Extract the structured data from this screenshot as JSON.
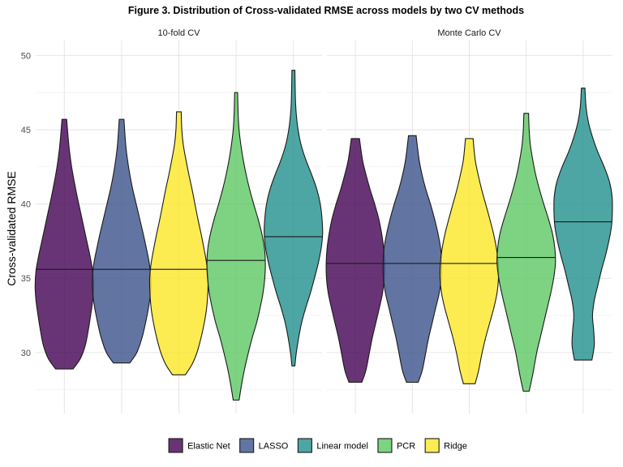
{
  "chart_data": {
    "type": "violin",
    "title": "Figure 3. Distribution of Cross-validated RMSE across models by two CV methods",
    "ylabel": "Cross-validated RMSE",
    "xlabel": "",
    "ylim": [
      25.9,
      51.0
    ],
    "yticks": [
      30,
      35,
      40,
      45,
      50
    ],
    "grid": true,
    "legend_position": "bottom",
    "legend": [
      {
        "name": "Elastic Net",
        "color": "#440154"
      },
      {
        "name": "LASSO",
        "color": "#3B528B"
      },
      {
        "name": "Linear model",
        "color": "#21908C"
      },
      {
        "name": "PCR",
        "color": "#5DC863"
      },
      {
        "name": "Ridge",
        "color": "#FDE725"
      }
    ],
    "facets": [
      {
        "label": "10-fold CV",
        "violins": [
          {
            "model": "Elastic Net",
            "color": "#440154",
            "min": 28.9,
            "max": 45.7,
            "median": 35.6,
            "density": [
              [
                28.9,
                0.3
              ],
              [
                29.6,
                0.55
              ],
              [
                30.5,
                0.72
              ],
              [
                31.5,
                0.82
              ],
              [
                32.5,
                0.9
              ],
              [
                33.5,
                0.97
              ],
              [
                34.5,
                1.0
              ],
              [
                35.5,
                0.97
              ],
              [
                36.5,
                0.88
              ],
              [
                37.5,
                0.77
              ],
              [
                38.5,
                0.66
              ],
              [
                39.5,
                0.55
              ],
              [
                40.5,
                0.44
              ],
              [
                41.5,
                0.34
              ],
              [
                42.5,
                0.25
              ],
              [
                43.5,
                0.18
              ],
              [
                44.5,
                0.13
              ],
              [
                45.7,
                0.08
              ]
            ]
          },
          {
            "model": "LASSO",
            "color": "#3B528B",
            "min": 29.3,
            "max": 45.7,
            "median": 35.6,
            "density": [
              [
                29.3,
                0.28
              ],
              [
                30.0,
                0.52
              ],
              [
                31.0,
                0.7
              ],
              [
                32.0,
                0.82
              ],
              [
                33.0,
                0.92
              ],
              [
                34.0,
                0.99
              ],
              [
                35.0,
                1.0
              ],
              [
                36.0,
                0.95
              ],
              [
                37.0,
                0.85
              ],
              [
                38.0,
                0.74
              ],
              [
                39.0,
                0.62
              ],
              [
                40.0,
                0.5
              ],
              [
                41.0,
                0.38
              ],
              [
                42.0,
                0.28
              ],
              [
                43.0,
                0.2
              ],
              [
                44.0,
                0.14
              ],
              [
                45.7,
                0.08
              ]
            ]
          },
          {
            "model": "Ridge",
            "color": "#FDE725",
            "min": 28.5,
            "max": 46.2,
            "median": 35.6,
            "density": [
              [
                28.5,
                0.22
              ],
              [
                29.2,
                0.45
              ],
              [
                30.0,
                0.62
              ],
              [
                31.0,
                0.76
              ],
              [
                32.0,
                0.87
              ],
              [
                33.0,
                0.95
              ],
              [
                34.0,
                0.99
              ],
              [
                35.0,
                1.0
              ],
              [
                36.0,
                0.95
              ],
              [
                37.0,
                0.86
              ],
              [
                38.0,
                0.76
              ],
              [
                39.0,
                0.65
              ],
              [
                40.0,
                0.55
              ],
              [
                41.0,
                0.45
              ],
              [
                42.0,
                0.34
              ],
              [
                43.0,
                0.24
              ],
              [
                44.0,
                0.15
              ],
              [
                45.0,
                0.1
              ],
              [
                46.2,
                0.08
              ]
            ]
          },
          {
            "model": "PCR",
            "color": "#5DC863",
            "min": 26.8,
            "max": 47.5,
            "median": 36.2,
            "density": [
              [
                26.8,
                0.1
              ],
              [
                28.0,
                0.2
              ],
              [
                29.0,
                0.3
              ],
              [
                30.0,
                0.42
              ],
              [
                31.0,
                0.55
              ],
              [
                32.0,
                0.7
              ],
              [
                33.0,
                0.82
              ],
              [
                34.0,
                0.92
              ],
              [
                35.0,
                0.98
              ],
              [
                36.0,
                1.0
              ],
              [
                37.0,
                0.97
              ],
              [
                38.0,
                0.88
              ],
              [
                39.0,
                0.75
              ],
              [
                40.0,
                0.6
              ],
              [
                41.0,
                0.46
              ],
              [
                42.0,
                0.34
              ],
              [
                43.0,
                0.24
              ],
              [
                44.0,
                0.16
              ],
              [
                45.0,
                0.1
              ],
              [
                46.0,
                0.07
              ],
              [
                47.5,
                0.05
              ]
            ]
          },
          {
            "model": "Linear model",
            "color": "#21908C",
            "min": 29.1,
            "max": 49.0,
            "median": 37.8,
            "density": [
              [
                29.1,
                0.05
              ],
              [
                30.0,
                0.1
              ],
              [
                31.0,
                0.18
              ],
              [
                32.0,
                0.28
              ],
              [
                33.0,
                0.42
              ],
              [
                34.0,
                0.58
              ],
              [
                35.0,
                0.72
              ],
              [
                36.0,
                0.85
              ],
              [
                37.0,
                0.95
              ],
              [
                38.0,
                1.0
              ],
              [
                39.0,
                0.98
              ],
              [
                40.0,
                0.92
              ],
              [
                41.0,
                0.8
              ],
              [
                42.0,
                0.62
              ],
              [
                43.0,
                0.42
              ],
              [
                44.0,
                0.26
              ],
              [
                45.0,
                0.16
              ],
              [
                46.0,
                0.1
              ],
              [
                47.0,
                0.07
              ],
              [
                49.0,
                0.05
              ]
            ]
          }
        ]
      },
      {
        "label": "Monte Carlo CV",
        "violins": [
          {
            "model": "Elastic Net",
            "color": "#440154",
            "min": 28.0,
            "max": 44.4,
            "median": 36.0,
            "density": [
              [
                28.0,
                0.22
              ],
              [
                28.8,
                0.36
              ],
              [
                30.0,
                0.48
              ],
              [
                31.0,
                0.58
              ],
              [
                32.0,
                0.7
              ],
              [
                33.0,
                0.82
              ],
              [
                34.0,
                0.93
              ],
              [
                35.0,
                0.99
              ],
              [
                36.0,
                1.0
              ],
              [
                37.0,
                0.97
              ],
              [
                38.0,
                0.9
              ],
              [
                39.0,
                0.8
              ],
              [
                40.0,
                0.66
              ],
              [
                41.0,
                0.5
              ],
              [
                42.0,
                0.36
              ],
              [
                43.0,
                0.24
              ],
              [
                44.4,
                0.14
              ]
            ]
          },
          {
            "model": "LASSO",
            "color": "#3B528B",
            "min": 28.0,
            "max": 44.6,
            "median": 36.0,
            "density": [
              [
                28.0,
                0.2
              ],
              [
                28.8,
                0.34
              ],
              [
                30.0,
                0.46
              ],
              [
                31.0,
                0.56
              ],
              [
                32.0,
                0.68
              ],
              [
                33.0,
                0.8
              ],
              [
                34.0,
                0.92
              ],
              [
                35.0,
                0.99
              ],
              [
                36.0,
                1.0
              ],
              [
                37.0,
                0.97
              ],
              [
                38.0,
                0.88
              ],
              [
                39.0,
                0.76
              ],
              [
                40.0,
                0.62
              ],
              [
                41.0,
                0.46
              ],
              [
                42.0,
                0.33
              ],
              [
                43.0,
                0.23
              ],
              [
                44.6,
                0.13
              ]
            ]
          },
          {
            "model": "Ridge",
            "color": "#FDE725",
            "min": 27.9,
            "max": 44.4,
            "median": 36.0,
            "density": [
              [
                27.9,
                0.2
              ],
              [
                28.8,
                0.32
              ],
              [
                30.0,
                0.44
              ],
              [
                31.0,
                0.56
              ],
              [
                32.0,
                0.7
              ],
              [
                33.0,
                0.84
              ],
              [
                34.0,
                0.95
              ],
              [
                35.0,
                1.0
              ],
              [
                36.0,
                0.99
              ],
              [
                37.0,
                0.93
              ],
              [
                38.0,
                0.83
              ],
              [
                39.0,
                0.7
              ],
              [
                40.0,
                0.56
              ],
              [
                41.0,
                0.42
              ],
              [
                42.0,
                0.3
              ],
              [
                43.0,
                0.2
              ],
              [
                44.4,
                0.13
              ]
            ]
          },
          {
            "model": "PCR",
            "color": "#5DC863",
            "min": 27.4,
            "max": 46.1,
            "median": 36.4,
            "density": [
              [
                27.4,
                0.1
              ],
              [
                28.5,
                0.22
              ],
              [
                30.0,
                0.36
              ],
              [
                31.0,
                0.48
              ],
              [
                32.0,
                0.6
              ],
              [
                33.0,
                0.72
              ],
              [
                34.0,
                0.84
              ],
              [
                35.0,
                0.94
              ],
              [
                36.0,
                1.0
              ],
              [
                37.0,
                0.98
              ],
              [
                38.0,
                0.9
              ],
              [
                39.0,
                0.76
              ],
              [
                40.0,
                0.6
              ],
              [
                41.0,
                0.45
              ],
              [
                42.0,
                0.32
              ],
              [
                43.0,
                0.22
              ],
              [
                44.0,
                0.14
              ],
              [
                45.0,
                0.1
              ],
              [
                46.1,
                0.08
              ]
            ]
          },
          {
            "model": "Linear model",
            "color": "#21908C",
            "min": 29.5,
            "max": 47.8,
            "median": 38.8,
            "density": [
              [
                29.5,
                0.3
              ],
              [
                30.5,
                0.38
              ],
              [
                31.5,
                0.36
              ],
              [
                32.5,
                0.32
              ],
              [
                33.5,
                0.38
              ],
              [
                34.5,
                0.5
              ],
              [
                35.5,
                0.62
              ],
              [
                36.5,
                0.76
              ],
              [
                37.5,
                0.88
              ],
              [
                38.5,
                0.97
              ],
              [
                39.5,
                1.0
              ],
              [
                40.5,
                0.99
              ],
              [
                41.5,
                0.9
              ],
              [
                42.5,
                0.72
              ],
              [
                43.5,
                0.5
              ],
              [
                44.5,
                0.32
              ],
              [
                45.5,
                0.18
              ],
              [
                46.5,
                0.1
              ],
              [
                47.8,
                0.06
              ]
            ]
          }
        ]
      }
    ]
  }
}
